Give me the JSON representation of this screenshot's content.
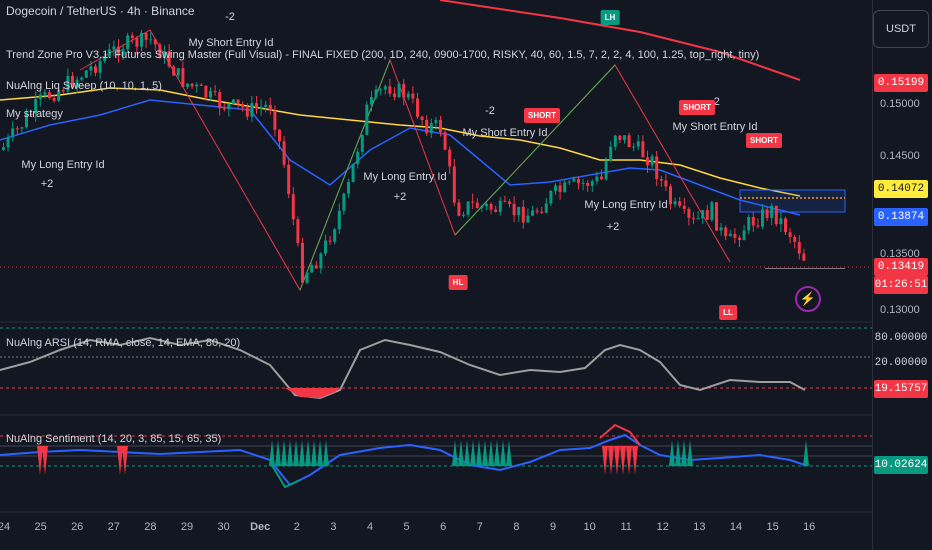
{
  "header": {
    "title": "Dogecoin / TetherUS · 4h · Binance",
    "indicator_trendzone": "Trend Zone Pro V3.1: Futures Swing Master (Full Visual) - FINAL FIXED (200, 1D, 240, 0900-1700, RISKY, 40, 60, 1.5, 7, 2, 2, 4, 100, 1.25, top_right, tiny)",
    "indicator_liq": "NuAlng Liq Sweep (10, 10, 1, 5)",
    "strategy": "My strategy"
  },
  "currency_button": "USDT",
  "price_axis": {
    "ticks": [
      "0.15000",
      "0.14500",
      "0.13500",
      "0.13000"
    ],
    "tag_ema_red": "0.15199",
    "tag_yellow": "0.14072",
    "tag_blue": "0.13874",
    "tag_last": "0.13419",
    "countdown": "01:26:51",
    "colors": {
      "red": "#f23645",
      "yellow": "#ffeb3b",
      "blue": "#2962ff",
      "green": "#089981"
    }
  },
  "annotations": {
    "short_entry": "My Short Entry Id",
    "long_entry": "My Long Entry Id",
    "minus2": "-2",
    "plus2": "+2",
    "short": "SHORT",
    "hl": "HL",
    "lh": "LH",
    "ll": "LL"
  },
  "rsi_pane": {
    "label": "NuAlng ARSI (14, RMA, close, 14, EMA, 80, 20)",
    "level_high": "80.00000",
    "level_low": "20.00000",
    "value": "19.15757"
  },
  "sentiment_pane": {
    "label": "NuAlng Sentiment (14, 20, 3, 85, 15, 65, 35)",
    "value": "10.02624"
  },
  "time_axis": [
    "24",
    "25",
    "26",
    "27",
    "28",
    "29",
    "30",
    "Dec",
    "2",
    "3",
    "4",
    "5",
    "6",
    "7",
    "8",
    "9",
    "10",
    "11",
    "12",
    "13",
    "14",
    "15",
    "16"
  ]
}
